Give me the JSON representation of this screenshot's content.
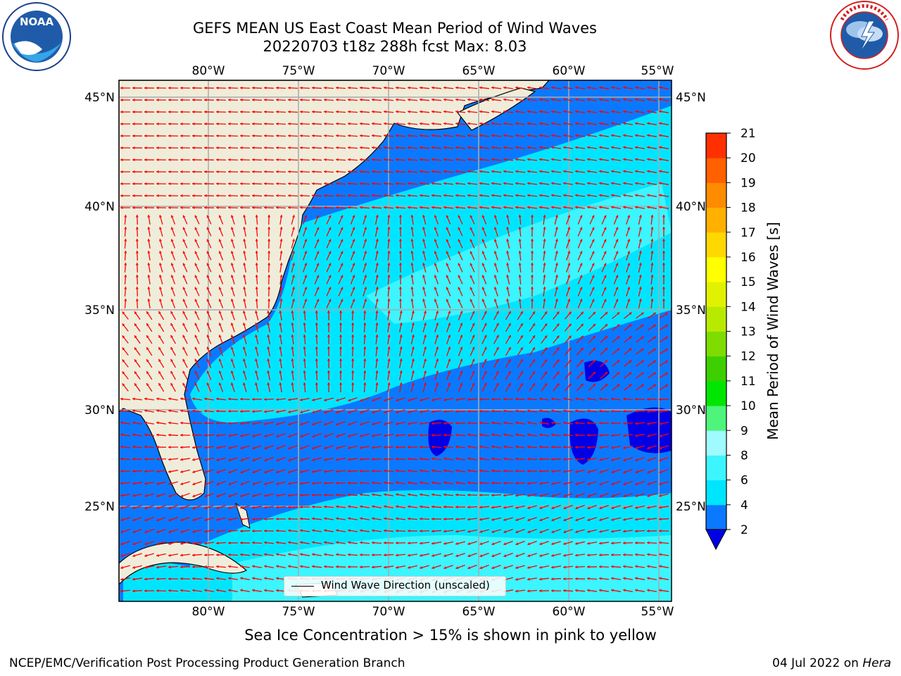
{
  "title": {
    "line1": "GEFS MEAN US East Coast Mean Period of Wind Waves",
    "line2": "20220703 t18z 288h fcst    Max: 8.03"
  },
  "map": {
    "lon_ticks": [
      "80°W",
      "75°W",
      "70°W",
      "65°W",
      "60°W",
      "55°W"
    ],
    "lat_ticks": [
      "45°N",
      "40°N",
      "35°N",
      "30°N",
      "25°N"
    ],
    "lon_range": [
      -85,
      -54.5
    ],
    "lat_range": [
      20.5,
      46
    ],
    "grid": true,
    "land_color": "#efedda",
    "arrow_color": "#ff0000",
    "legend": {
      "label": "Wind Wave Direction (unscaled)",
      "placement": "bottom-center"
    }
  },
  "colorbar": {
    "label": "Mean Period of Wind Waves [s]",
    "ticks": [
      "2",
      "4",
      "6",
      "8",
      "9",
      "10",
      "11",
      "12",
      "13",
      "14",
      "15",
      "16",
      "17",
      "18",
      "19",
      "20",
      "21"
    ],
    "colors": [
      "#0a79ff",
      "#00e5ff",
      "#3cf5ff",
      "#9ffbff",
      "#4df57b",
      "#00e600",
      "#3ecf00",
      "#7fdc00",
      "#b8ea00",
      "#e0f200",
      "#ffff00",
      "#ffd800",
      "#ffb000",
      "#ff8c00",
      "#ff6000",
      "#ff3000",
      "#ff0000"
    ],
    "extend_color": "#0000e6",
    "extend": "min"
  },
  "footer": {
    "ice_note": "Sea Ice Concentration > 15% is shown in pink to yellow",
    "left": "NCEP/EMC/Verification Post Processing Product Generation Branch",
    "right_date": "04 Jul 2022 on ",
    "right_machine": "Hera"
  },
  "logos": {
    "noaa": {
      "text": "NOAA",
      "ring_text": "NATIONAL OCEANIC AND ATMOSPHERIC ADMINISTRATION"
    },
    "nws": {
      "ring_text": "NATIONAL WEATHER SERVICE"
    }
  }
}
